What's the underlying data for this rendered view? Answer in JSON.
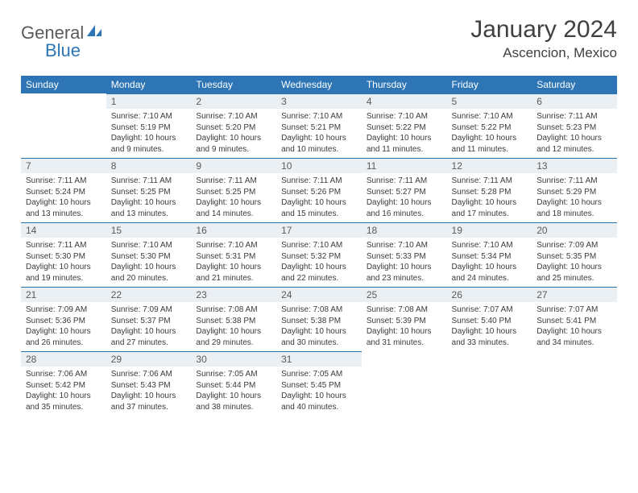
{
  "branding": {
    "word1": "General",
    "word2": "Blue",
    "word1_color": "#5a5a5a",
    "word2_color": "#2e75b6",
    "icon_color": "#2e75b6"
  },
  "header": {
    "title": "January 2024",
    "subtitle": "Ascencion, Mexico",
    "title_fontsize": 30,
    "subtitle_fontsize": 17,
    "title_color": "#404040"
  },
  "calendar": {
    "header_bg": "#2e75b6",
    "header_fg": "#ffffff",
    "daynum_bg": "#eaeff4",
    "daynum_border": "#2e75b6",
    "cell_font_size": 10,
    "daynum_font_size": 12,
    "columns": [
      "Sunday",
      "Monday",
      "Tuesday",
      "Wednesday",
      "Thursday",
      "Friday",
      "Saturday"
    ],
    "start_offset": 1,
    "days": [
      {
        "n": "1",
        "sunrise": "Sunrise: 7:10 AM",
        "sunset": "Sunset: 5:19 PM",
        "daylight": "Daylight: 10 hours and 9 minutes."
      },
      {
        "n": "2",
        "sunrise": "Sunrise: 7:10 AM",
        "sunset": "Sunset: 5:20 PM",
        "daylight": "Daylight: 10 hours and 9 minutes."
      },
      {
        "n": "3",
        "sunrise": "Sunrise: 7:10 AM",
        "sunset": "Sunset: 5:21 PM",
        "daylight": "Daylight: 10 hours and 10 minutes."
      },
      {
        "n": "4",
        "sunrise": "Sunrise: 7:10 AM",
        "sunset": "Sunset: 5:22 PM",
        "daylight": "Daylight: 10 hours and 11 minutes."
      },
      {
        "n": "5",
        "sunrise": "Sunrise: 7:10 AM",
        "sunset": "Sunset: 5:22 PM",
        "daylight": "Daylight: 10 hours and 11 minutes."
      },
      {
        "n": "6",
        "sunrise": "Sunrise: 7:11 AM",
        "sunset": "Sunset: 5:23 PM",
        "daylight": "Daylight: 10 hours and 12 minutes."
      },
      {
        "n": "7",
        "sunrise": "Sunrise: 7:11 AM",
        "sunset": "Sunset: 5:24 PM",
        "daylight": "Daylight: 10 hours and 13 minutes."
      },
      {
        "n": "8",
        "sunrise": "Sunrise: 7:11 AM",
        "sunset": "Sunset: 5:25 PM",
        "daylight": "Daylight: 10 hours and 13 minutes."
      },
      {
        "n": "9",
        "sunrise": "Sunrise: 7:11 AM",
        "sunset": "Sunset: 5:25 PM",
        "daylight": "Daylight: 10 hours and 14 minutes."
      },
      {
        "n": "10",
        "sunrise": "Sunrise: 7:11 AM",
        "sunset": "Sunset: 5:26 PM",
        "daylight": "Daylight: 10 hours and 15 minutes."
      },
      {
        "n": "11",
        "sunrise": "Sunrise: 7:11 AM",
        "sunset": "Sunset: 5:27 PM",
        "daylight": "Daylight: 10 hours and 16 minutes."
      },
      {
        "n": "12",
        "sunrise": "Sunrise: 7:11 AM",
        "sunset": "Sunset: 5:28 PM",
        "daylight": "Daylight: 10 hours and 17 minutes."
      },
      {
        "n": "13",
        "sunrise": "Sunrise: 7:11 AM",
        "sunset": "Sunset: 5:29 PM",
        "daylight": "Daylight: 10 hours and 18 minutes."
      },
      {
        "n": "14",
        "sunrise": "Sunrise: 7:11 AM",
        "sunset": "Sunset: 5:30 PM",
        "daylight": "Daylight: 10 hours and 19 minutes."
      },
      {
        "n": "15",
        "sunrise": "Sunrise: 7:10 AM",
        "sunset": "Sunset: 5:30 PM",
        "daylight": "Daylight: 10 hours and 20 minutes."
      },
      {
        "n": "16",
        "sunrise": "Sunrise: 7:10 AM",
        "sunset": "Sunset: 5:31 PM",
        "daylight": "Daylight: 10 hours and 21 minutes."
      },
      {
        "n": "17",
        "sunrise": "Sunrise: 7:10 AM",
        "sunset": "Sunset: 5:32 PM",
        "daylight": "Daylight: 10 hours and 22 minutes."
      },
      {
        "n": "18",
        "sunrise": "Sunrise: 7:10 AM",
        "sunset": "Sunset: 5:33 PM",
        "daylight": "Daylight: 10 hours and 23 minutes."
      },
      {
        "n": "19",
        "sunrise": "Sunrise: 7:10 AM",
        "sunset": "Sunset: 5:34 PM",
        "daylight": "Daylight: 10 hours and 24 minutes."
      },
      {
        "n": "20",
        "sunrise": "Sunrise: 7:09 AM",
        "sunset": "Sunset: 5:35 PM",
        "daylight": "Daylight: 10 hours and 25 minutes."
      },
      {
        "n": "21",
        "sunrise": "Sunrise: 7:09 AM",
        "sunset": "Sunset: 5:36 PM",
        "daylight": "Daylight: 10 hours and 26 minutes."
      },
      {
        "n": "22",
        "sunrise": "Sunrise: 7:09 AM",
        "sunset": "Sunset: 5:37 PM",
        "daylight": "Daylight: 10 hours and 27 minutes."
      },
      {
        "n": "23",
        "sunrise": "Sunrise: 7:08 AM",
        "sunset": "Sunset: 5:38 PM",
        "daylight": "Daylight: 10 hours and 29 minutes."
      },
      {
        "n": "24",
        "sunrise": "Sunrise: 7:08 AM",
        "sunset": "Sunset: 5:38 PM",
        "daylight": "Daylight: 10 hours and 30 minutes."
      },
      {
        "n": "25",
        "sunrise": "Sunrise: 7:08 AM",
        "sunset": "Sunset: 5:39 PM",
        "daylight": "Daylight: 10 hours and 31 minutes."
      },
      {
        "n": "26",
        "sunrise": "Sunrise: 7:07 AM",
        "sunset": "Sunset: 5:40 PM",
        "daylight": "Daylight: 10 hours and 33 minutes."
      },
      {
        "n": "27",
        "sunrise": "Sunrise: 7:07 AM",
        "sunset": "Sunset: 5:41 PM",
        "daylight": "Daylight: 10 hours and 34 minutes."
      },
      {
        "n": "28",
        "sunrise": "Sunrise: 7:06 AM",
        "sunset": "Sunset: 5:42 PM",
        "daylight": "Daylight: 10 hours and 35 minutes."
      },
      {
        "n": "29",
        "sunrise": "Sunrise: 7:06 AM",
        "sunset": "Sunset: 5:43 PM",
        "daylight": "Daylight: 10 hours and 37 minutes."
      },
      {
        "n": "30",
        "sunrise": "Sunrise: 7:05 AM",
        "sunset": "Sunset: 5:44 PM",
        "daylight": "Daylight: 10 hours and 38 minutes."
      },
      {
        "n": "31",
        "sunrise": "Sunrise: 7:05 AM",
        "sunset": "Sunset: 5:45 PM",
        "daylight": "Daylight: 10 hours and 40 minutes."
      }
    ]
  }
}
